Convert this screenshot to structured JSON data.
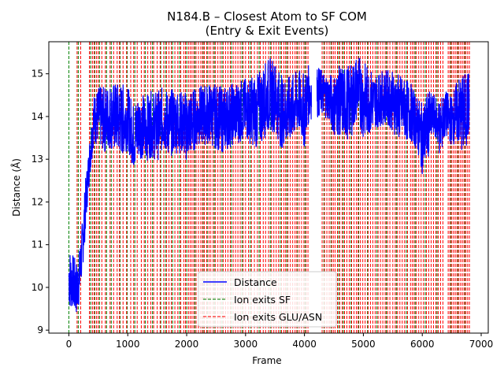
{
  "chart_data": {
    "type": "line",
    "title_line1": "N184.B – Closest Atom to SF COM",
    "title_line2": "(Entry & Exit Events)",
    "xlabel": "Frame",
    "ylabel": "Distance (Å)",
    "xlim": [
      -340,
      7120
    ],
    "ylim": [
      8.93,
      15.75
    ],
    "xticks": [
      0,
      1000,
      2000,
      3000,
      4000,
      5000,
      6000,
      7000
    ],
    "xtick_labels": [
      "0",
      "1000",
      "2000",
      "3000",
      "4000",
      "5000",
      "6000",
      "7000"
    ],
    "yticks": [
      9,
      10,
      11,
      12,
      13,
      14,
      15
    ],
    "ytick_labels": [
      "9",
      "10",
      "11",
      "12",
      "13",
      "14",
      "15"
    ],
    "grid": false,
    "legend_position": "lower center",
    "series": [
      {
        "name": "Distance",
        "color": "#0000ff",
        "style": "solid",
        "envelope": {
          "x": [
            0,
            30,
            60,
            100,
            140,
            180,
            230,
            280,
            320,
            360,
            420,
            500,
            600,
            700,
            800,
            900,
            1000,
            1100,
            1200,
            1300,
            1400,
            1500,
            1600,
            1700,
            1800,
            1900,
            2000,
            2200,
            2400,
            2600,
            2800,
            3000,
            3200,
            3400,
            3500,
            3600,
            3700,
            3800,
            3900,
            4000,
            4050,
            4100,
            4200,
            4300,
            4400,
            4500,
            4600,
            4700,
            4800,
            4900,
            5000,
            5200,
            5400,
            5600,
            5800,
            5900,
            6000,
            6100,
            6200,
            6300,
            6400,
            6500,
            6600,
            6700,
            6800
          ],
          "low": [
            9.5,
            9.4,
            9.5,
            9.3,
            9.3,
            9.6,
            10.3,
            11.2,
            12.0,
            12.6,
            13.3,
            13.3,
            13.1,
            13.2,
            13.1,
            13.0,
            13.2,
            12.7,
            13.0,
            12.9,
            13.0,
            12.9,
            13.2,
            13.0,
            13.1,
            13.1,
            12.9,
            13.3,
            13.3,
            13.1,
            13.3,
            13.4,
            13.2,
            13.6,
            13.6,
            13.2,
            13.3,
            13.4,
            13.6,
            13.2,
            13.7,
            13.9,
            13.9,
            14.0,
            13.9,
            13.5,
            13.5,
            13.4,
            13.5,
            13.9,
            13.4,
            13.7,
            13.8,
            13.4,
            13.4,
            13.2,
            12.6,
            13.0,
            13.6,
            13.0,
            13.5,
            13.3,
            13.3,
            13.0,
            13.5
          ],
          "high": [
            11.0,
            10.9,
            10.8,
            10.7,
            10.6,
            10.9,
            11.6,
            12.5,
            13.0,
            13.6,
            14.5,
            14.7,
            14.7,
            14.8,
            14.8,
            14.8,
            14.7,
            14.3,
            14.6,
            14.5,
            14.6,
            14.6,
            14.7,
            14.6,
            14.7,
            14.6,
            14.6,
            14.7,
            14.8,
            14.7,
            14.8,
            14.9,
            15.0,
            15.4,
            15.3,
            15.0,
            14.9,
            15.0,
            15.1,
            15.0,
            15.2,
            15.2,
            15.2,
            15.1,
            15.0,
            15.0,
            15.2,
            15.2,
            15.2,
            15.5,
            15.3,
            15.0,
            15.1,
            15.0,
            14.8,
            14.5,
            14.3,
            14.6,
            14.5,
            14.4,
            14.6,
            14.5,
            14.9,
            15.0,
            15.1
          ],
          "gap": [
            4120,
            4210
          ]
        }
      },
      {
        "name": "Ion exits SF",
        "color": "#008000",
        "style": "dashed",
        "event_frames": [
          0,
          160,
          370,
          440,
          520,
          640,
          720,
          870,
          990,
          1120,
          1300,
          1420,
          1560,
          1640,
          1760,
          1880,
          2000,
          2140,
          2280,
          2350,
          2470,
          2600,
          2760,
          2940,
          3080,
          3230,
          3420,
          3590,
          3700,
          3880,
          4010,
          4330,
          4450,
          4580,
          4660,
          4790,
          4920,
          5070,
          5230,
          5390,
          5560,
          5730,
          5880,
          6050,
          6250,
          6480,
          6600,
          6720
        ]
      },
      {
        "name": "Ion exits GLU/ASN",
        "color": "#ff0000",
        "style": "dashed",
        "event_frames": [
          140,
          200,
          350,
          400,
          430,
          470,
          500,
          560,
          620,
          700,
          760,
          820,
          860,
          920,
          980,
          1050,
          1100,
          1160,
          1230,
          1280,
          1340,
          1390,
          1440,
          1500,
          1550,
          1610,
          1660,
          1700,
          1740,
          1800,
          1850,
          1900,
          1950,
          1980,
          2030,
          2060,
          2090,
          2120,
          2160,
          2200,
          2240,
          2270,
          2300,
          2340,
          2380,
          2410,
          2450,
          2490,
          2530,
          2570,
          2620,
          2660,
          2700,
          2740,
          2790,
          2830,
          2870,
          2910,
          2960,
          3000,
          3050,
          3100,
          3150,
          3200,
          3250,
          3300,
          3340,
          3390,
          3440,
          3480,
          3520,
          3560,
          3610,
          3650,
          3680,
          3720,
          3760,
          3800,
          3840,
          3870,
          3910,
          3950,
          3990,
          4030,
          4060,
          4300,
          4340,
          4380,
          4420,
          4460,
          4490,
          4520,
          4560,
          4600,
          4640,
          4680,
          4720,
          4760,
          4800,
          4840,
          4880,
          4910,
          4950,
          4990,
          5030,
          5080,
          5120,
          5160,
          5200,
          5250,
          5290,
          5330,
          5370,
          5410,
          5450,
          5500,
          5540,
          5580,
          5620,
          5660,
          5700,
          5750,
          5800,
          5830,
          5860,
          5900,
          5940,
          5980,
          6020,
          6070,
          6110,
          6150,
          6190,
          6230,
          6270,
          6310,
          6350,
          6440,
          6470,
          6500,
          6530,
          6560,
          6590,
          6620,
          6650,
          6680,
          6710,
          6740,
          6770,
          6800
        ]
      }
    ]
  }
}
